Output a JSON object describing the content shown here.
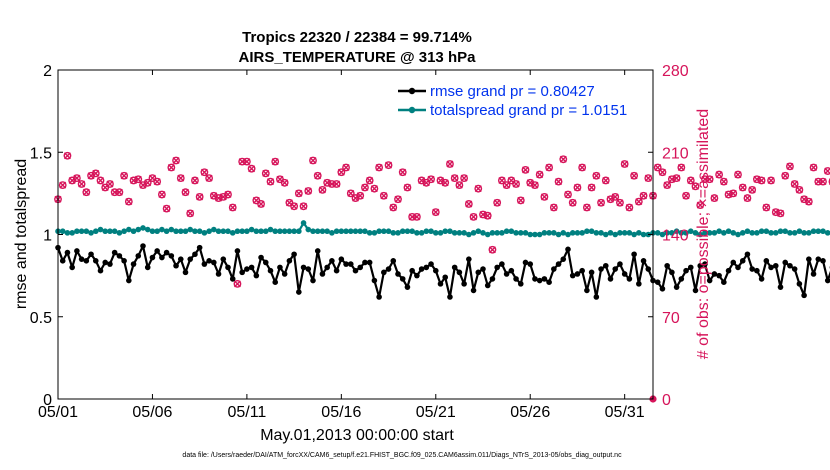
{
  "chart_data": {
    "type": "line",
    "title_line1": "Tropics 22320 / 22384 = 99.714%",
    "title_line2": "AIRS_TEMPERATURE @ 313 hPa",
    "xlabel": "May.01,2013 00:00:00 start",
    "ylabel_left": "rmse and totalspread",
    "ylabel_right": "# of obs: o=possible; ×=assimilated",
    "footer": "data file: /Users/raeder/DAI/ATM_forcXX/CAM6_setup/f.e21.FHIST_BGC.f09_025.CAM6assim.011/Diags_NTrS_2013-05/obs_diag_output.nc",
    "x_range_days": [
      0,
      31.5
    ],
    "xticks": [
      0,
      5,
      10,
      15,
      20,
      25,
      30
    ],
    "xtick_labels": [
      "05/01",
      "05/06",
      "05/11",
      "05/16",
      "05/21",
      "05/26",
      "05/31"
    ],
    "ylim_left": [
      0,
      2
    ],
    "yticks_left": [
      0,
      0.5,
      1,
      1.5,
      2
    ],
    "ytick_labels_left": [
      "0",
      "0.5",
      "1",
      "1.5",
      "2"
    ],
    "ylim_right": [
      0,
      280
    ],
    "yticks_right": [
      0,
      70,
      140,
      210,
      280
    ],
    "ytick_labels_right": [
      "0",
      "70",
      "140",
      "210",
      "280"
    ],
    "colors": {
      "rmse": "#000000",
      "spread": "#008080",
      "obs": "#d6145a",
      "axis": "#000000"
    },
    "legend": {
      "placement": "top-right",
      "entries": [
        "rmse grand pr = 0.80427",
        "totalspread grand pr = 1.0151"
      ],
      "text_color": "#0033ee"
    },
    "series": [
      {
        "name": "rmse",
        "axis": "left",
        "dt": 0.25,
        "x0": 0,
        "values": [
          0.92,
          0.84,
          0.89,
          0.8,
          0.9,
          0.85,
          0.84,
          0.88,
          0.84,
          0.78,
          0.83,
          0.82,
          0.89,
          0.87,
          0.84,
          0.72,
          0.82,
          0.87,
          0.93,
          0.8,
          0.86,
          0.9,
          0.86,
          0.89,
          0.87,
          0.81,
          0.85,
          0.77,
          0.85,
          0.88,
          0.92,
          0.82,
          0.84,
          0.83,
          0.76,
          0.85,
          0.8,
          0.73,
          0.9,
          0.77,
          0.79,
          0.8,
          0.75,
          0.86,
          0.83,
          0.78,
          0.71,
          0.8,
          0.76,
          0.84,
          0.88,
          0.65,
          0.8,
          0.79,
          0.72,
          0.9,
          0.76,
          0.8,
          0.84,
          0.78,
          0.85,
          0.82,
          0.82,
          0.78,
          0.8,
          0.83,
          0.83,
          0.72,
          0.62,
          0.77,
          0.79,
          0.84,
          0.76,
          0.73,
          0.68,
          0.78,
          0.75,
          0.79,
          0.8,
          0.82,
          0.78,
          0.7,
          0.74,
          0.62,
          0.8,
          0.77,
          0.7,
          0.85,
          0.66,
          0.77,
          0.79,
          0.69,
          0.73,
          0.8,
          0.82,
          0.76,
          0.78,
          0.73,
          0.7,
          0.83,
          0.82,
          0.73,
          0.72,
          0.73,
          0.71,
          0.79,
          0.82,
          0.85,
          0.91,
          0.75,
          0.76,
          0.78,
          0.66,
          0.77,
          0.62,
          0.79,
          0.81,
          0.73,
          0.79,
          0.82,
          0.76,
          0.73,
          0.88,
          0.7,
          0.84,
          0.79,
          0.72,
          0.71,
          0.67,
          0.81,
          0.77,
          0.68,
          0.73,
          0.78,
          0.8,
          0.66,
          0.81,
          0.82,
          0.72,
          0.76,
          0.75,
          0.71,
          0.78,
          0.83,
          0.8,
          0.84,
          0.88,
          0.79,
          0.78,
          0.73,
          0.84,
          0.8,
          0.81,
          0.68,
          0.83,
          0.81,
          0.79,
          0.7,
          0.63,
          0.85,
          0.76,
          0.85,
          0.84,
          0.72,
          0.8,
          0.69,
          0.84,
          0.79,
          0.72,
          0.76,
          0.81,
          0.8,
          0.87,
          0.85,
          0.82,
          0.78,
          0.8,
          0.74,
          0.83,
          0.84,
          0.91,
          0.78,
          0.7,
          0.86,
          0.88,
          0.8,
          0.69,
          0.83,
          0.78,
          0.77,
          0.81,
          0.95,
          0.88,
          0.76,
          0.89,
          0.93,
          0.82,
          0.78,
          0.84,
          0.84,
          0.86,
          0.8,
          0.78,
          0.72,
          0.88,
          0.93,
          0.85,
          0.77,
          0.89,
          0.79,
          0.74,
          0.83,
          0.88,
          0.81,
          0.77,
          0.86,
          0.9,
          0.9,
          0.89,
          0.87,
          0.78,
          0.76,
          0.76
        ]
      },
      {
        "name": "totalspread",
        "axis": "left",
        "dt": 0.25,
        "x0": 0,
        "values": [
          1.02,
          1.02,
          1.01,
          1.01,
          1.02,
          1.02,
          1.02,
          1.01,
          1.02,
          1.03,
          1.02,
          1.02,
          1.02,
          1.01,
          1.02,
          1.03,
          1.02,
          1.03,
          1.04,
          1.03,
          1.02,
          1.02,
          1.03,
          1.02,
          1.03,
          1.02,
          1.02,
          1.02,
          1.03,
          1.02,
          1.02,
          1.01,
          1.02,
          1.03,
          1.02,
          1.02,
          1.02,
          1.01,
          1.02,
          1.02,
          1.02,
          1.03,
          1.02,
          1.02,
          1.02,
          1.03,
          1.02,
          1.02,
          1.02,
          1.02,
          1.02,
          1.02,
          1.07,
          1.03,
          1.02,
          1.02,
          1.02,
          1.02,
          1.01,
          1.02,
          1.02,
          1.02,
          1.02,
          1.02,
          1.02,
          1.02,
          1.01,
          1.01,
          1.02,
          1.02,
          1.02,
          1.01,
          1.01,
          1.02,
          1.02,
          1.02,
          1.01,
          1.01,
          1.02,
          1.02,
          1.01,
          1.01,
          1.02,
          1.02,
          1.01,
          1.01,
          1.01,
          1.0,
          1.01,
          1.02,
          1.01,
          1.0,
          1.01,
          1.01,
          1.01,
          1.02,
          1.02,
          1.01,
          1.01,
          1.01,
          1.0,
          1.0,
          1.0,
          1.01,
          1.01,
          1.01,
          1.0,
          1.01,
          1.0,
          1.01,
          1.01,
          1.01,
          1.02,
          1.02,
          1.01,
          1.01,
          1.0,
          1.01,
          1.0,
          1.01,
          1.01,
          1.01,
          1.0,
          1.01,
          1.0,
          1.0,
          1.01,
          1.01,
          1.0,
          1.01,
          1.01,
          1.02,
          1.01,
          1.01,
          1.02,
          1.01,
          1.0,
          1.01,
          1.01,
          1.01,
          1.02,
          1.01,
          1.02,
          1.01,
          1.0,
          1.01,
          1.02,
          1.01,
          1.01,
          1.02,
          1.02,
          1.01,
          1.01,
          1.02,
          1.02,
          1.01,
          1.01,
          1.02,
          1.01,
          1.01,
          1.02,
          1.02,
          1.02,
          1.01,
          1.01,
          1.02,
          1.02,
          1.02,
          1.02,
          1.02,
          1.02,
          1.02,
          1.01,
          1.01,
          1.02,
          1.02,
          1.02,
          1.01,
          1.02,
          1.02,
          1.02,
          1.02,
          1.01,
          1.02,
          1.02,
          1.02,
          1.01,
          1.02,
          1.02,
          1.02,
          1.02,
          1.02,
          1.01,
          1.02,
          1.02,
          1.02,
          1.02,
          1.02,
          1.03,
          1.02,
          1.02,
          1.02,
          1.02,
          1.02,
          1.03,
          1.02,
          1.02,
          1.02,
          1.02,
          1.02,
          1.03,
          1.02,
          1.03,
          1.02,
          1.02,
          1.02,
          1.03,
          1.02,
          1.02,
          1.02,
          1.03,
          1.03,
          1.02,
          1.02,
          1.03,
          1.04,
          1.03,
          1.02,
          1.02,
          1.03,
          1.04,
          1.03,
          1.01
        ]
      },
      {
        "name": "obs_possible",
        "axis": "right",
        "dt": 0.25,
        "x0": 0,
        "values": [
          170,
          182,
          207,
          186,
          188,
          183,
          176,
          190,
          192,
          186,
          180,
          183,
          176,
          176,
          190,
          168,
          186,
          187,
          182,
          184,
          188,
          185,
          174,
          162,
          197,
          203,
          188,
          176,
          158,
          186,
          172,
          193,
          188,
          173,
          171,
          172,
          174,
          163,
          98,
          202,
          202,
          196,
          169,
          166,
          192,
          185,
          202,
          187,
          184,
          167,
          164,
          175,
          164,
          177,
          203,
          190,
          178,
          184,
          183,
          183,
          193,
          197,
          175,
          171,
          173,
          180,
          186,
          179,
          197,
          173,
          199,
          163,
          170,
          193,
          180,
          155,
          155,
          186,
          184,
          187,
          159,
          186,
          184,
          200,
          188,
          182,
          188,
          166,
          155,
          179,
          157,
          156,
          127,
          167,
          186,
          182,
          186,
          183,
          169,
          195,
          184,
          182,
          191,
          172,
          197,
          163,
          185,
          204,
          174,
          167,
          180,
          197,
          163,
          180,
          190,
          167,
          186,
          170,
          172,
          167,
          200,
          163,
          190,
          168,
          173,
          188,
          173,
          197,
          193,
          182,
          187,
          188,
          197,
          173,
          186,
          181,
          165,
          187,
          187,
          171,
          191,
          185,
          174,
          175,
          191,
          180,
          171,
          178,
          187,
          186,
          163,
          186,
          159,
          158,
          190,
          198,
          183,
          178,
          170,
          168,
          197,
          185,
          185,
          194,
          185,
          194,
          168,
          181,
          187,
          184,
          188,
          184,
          187,
          163,
          171,
          168,
          179,
          196,
          200,
          199,
          188,
          192,
          168,
          206,
          178,
          167,
          163,
          178,
          180,
          187,
          177,
          204,
          183,
          189,
          168,
          200,
          189,
          199,
          164,
          168,
          183,
          194,
          171,
          163,
          186,
          193,
          172,
          183,
          196,
          175,
          179,
          181,
          176,
          182,
          166,
          171,
          168,
          173,
          183,
          177,
          170,
          184,
          203,
          208
        ]
      },
      {
        "name": "obs_assimilated",
        "axis": "right",
        "dt": 0.25,
        "x0": 0,
        "values": [
          170,
          182,
          207,
          186,
          188,
          183,
          176,
          190,
          192,
          186,
          180,
          183,
          176,
          176,
          190,
          168,
          186,
          187,
          182,
          184,
          188,
          185,
          174,
          162,
          197,
          203,
          188,
          176,
          158,
          186,
          172,
          193,
          188,
          173,
          171,
          172,
          174,
          163,
          98,
          202,
          202,
          196,
          169,
          166,
          192,
          185,
          202,
          187,
          184,
          167,
          164,
          175,
          164,
          177,
          203,
          190,
          178,
          184,
          183,
          183,
          193,
          197,
          175,
          171,
          173,
          180,
          186,
          179,
          197,
          173,
          199,
          163,
          170,
          193,
          180,
          155,
          155,
          186,
          184,
          187,
          159,
          186,
          184,
          200,
          188,
          182,
          188,
          166,
          155,
          179,
          157,
          156,
          127,
          167,
          186,
          182,
          186,
          183,
          169,
          195,
          184,
          182,
          191,
          172,
          197,
          163,
          185,
          204,
          174,
          167,
          180,
          197,
          163,
          180,
          190,
          167,
          186,
          170,
          172,
          167,
          200,
          163,
          190,
          168,
          173,
          188,
          173,
          197,
          193,
          182,
          187,
          188,
          197,
          173,
          186,
          181,
          165,
          187,
          187,
          171,
          191,
          185,
          174,
          175,
          191,
          180,
          171,
          178,
          187,
          186,
          163,
          186,
          159,
          158,
          190,
          198,
          183,
          178,
          170,
          168,
          197,
          185,
          185,
          194,
          185,
          194,
          168,
          181,
          187,
          184,
          188,
          184,
          187,
          163,
          171,
          168,
          179,
          196,
          200,
          199,
          188,
          192,
          168,
          206,
          178,
          167,
          163,
          178,
          180,
          187,
          177,
          204,
          183,
          189,
          168,
          200,
          189,
          199,
          164,
          168,
          183,
          194,
          171,
          163,
          186,
          193,
          172,
          183,
          196,
          175,
          179,
          181,
          176,
          182,
          166,
          171,
          168,
          173,
          183,
          177,
          170,
          184,
          203,
          208
        ]
      }
    ]
  }
}
